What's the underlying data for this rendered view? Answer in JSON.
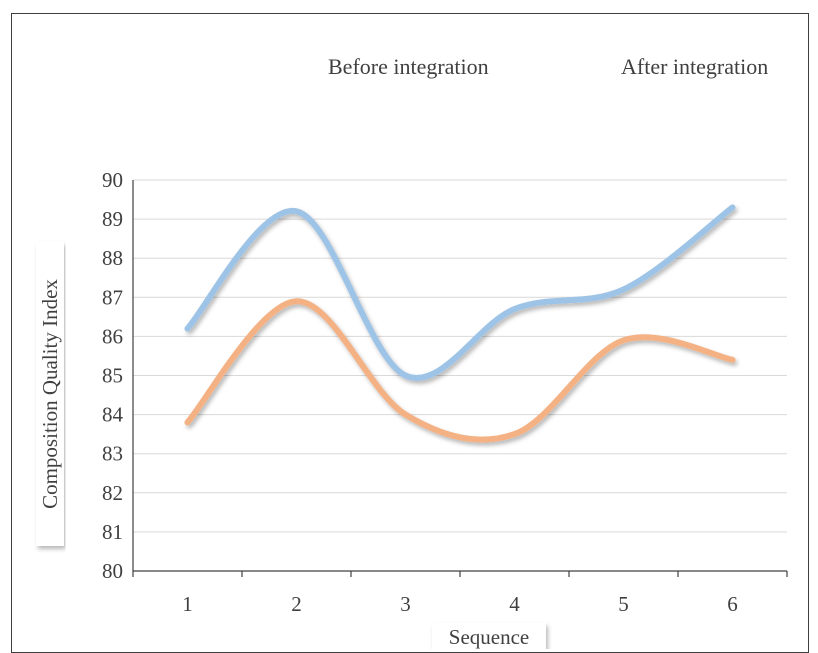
{
  "chart_data": {
    "type": "line",
    "title": "",
    "xlabel": "Sequence",
    "ylabel": "Composition Quality Index",
    "x": [
      1,
      2,
      3,
      4,
      5,
      6
    ],
    "ylim": [
      80,
      90
    ],
    "yticks": [
      80,
      81,
      82,
      83,
      84,
      85,
      86,
      87,
      88,
      89,
      90
    ],
    "grid": true,
    "legend_position": "top-right",
    "smooth": true,
    "series": [
      {
        "name": "Before integration",
        "color": "#f4b183",
        "values": [
          83.8,
          86.9,
          84.0,
          83.5,
          85.9,
          85.4
        ]
      },
      {
        "name": "After integration",
        "color": "#9dc3e6",
        "values": [
          86.2,
          89.2,
          85.0,
          86.7,
          87.2,
          89.3
        ]
      }
    ]
  }
}
